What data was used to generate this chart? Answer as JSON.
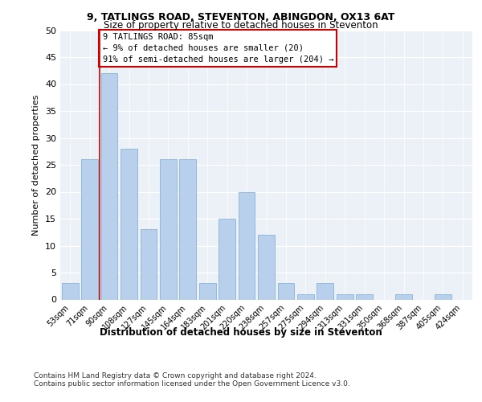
{
  "title1": "9, TATLINGS ROAD, STEVENTON, ABINGDON, OX13 6AT",
  "title2": "Size of property relative to detached houses in Steventon",
  "xlabel": "Distribution of detached houses by size in Steventon",
  "ylabel": "Number of detached properties",
  "categories": [
    "53sqm",
    "71sqm",
    "90sqm",
    "108sqm",
    "127sqm",
    "145sqm",
    "164sqm",
    "183sqm",
    "201sqm",
    "220sqm",
    "238sqm",
    "257sqm",
    "275sqm",
    "294sqm",
    "313sqm",
    "331sqm",
    "350sqm",
    "368sqm",
    "387sqm",
    "405sqm",
    "424sqm"
  ],
  "values": [
    3,
    26,
    42,
    28,
    13,
    26,
    26,
    3,
    15,
    20,
    12,
    3,
    1,
    3,
    1,
    1,
    0,
    1,
    0,
    1,
    0
  ],
  "bar_color": "#b8d0eb",
  "bar_edge_color": "#8ab4d8",
  "reference_line_color": "#cc0000",
  "annotation_text": "9 TATLINGS ROAD: 85sqm\n← 9% of detached houses are smaller (20)\n91% of semi-detached houses are larger (204) →",
  "annotation_box_color": "#ffffff",
  "annotation_box_edge": "#cc0000",
  "ylim": [
    0,
    50
  ],
  "yticks": [
    0,
    5,
    10,
    15,
    20,
    25,
    30,
    35,
    40,
    45,
    50
  ],
  "footer1": "Contains HM Land Registry data © Crown copyright and database right 2024.",
  "footer2": "Contains public sector information licensed under the Open Government Licence v3.0.",
  "bg_color": "#ecf1f8"
}
